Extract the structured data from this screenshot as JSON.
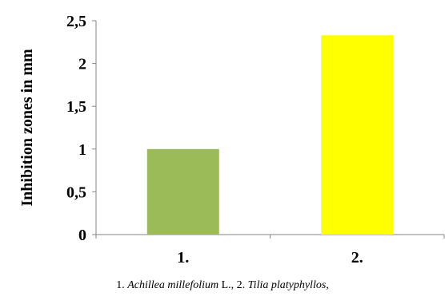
{
  "chart_data": {
    "type": "bar",
    "categories": [
      "1.",
      "2."
    ],
    "values": [
      1.0,
      2.33
    ],
    "bar_colors": [
      "#9BBB59",
      "#FFFF00"
    ],
    "ylabel": "Inhibition zones in mm",
    "xlabel": "",
    "ylim": [
      0,
      2.5
    ],
    "yticks": [
      0,
      0.5,
      1,
      1.5,
      2,
      2.5
    ],
    "ytick_labels": [
      "0",
      "0,5",
      "1",
      "1,5",
      "2",
      "2,5"
    ],
    "grid": false,
    "legend": "none"
  },
  "caption": {
    "num1": "1.",
    "species1": "Achillea millefolium",
    "author1": "L.,",
    "num2": "2.",
    "species2": "Tilia platyphyllos,"
  }
}
